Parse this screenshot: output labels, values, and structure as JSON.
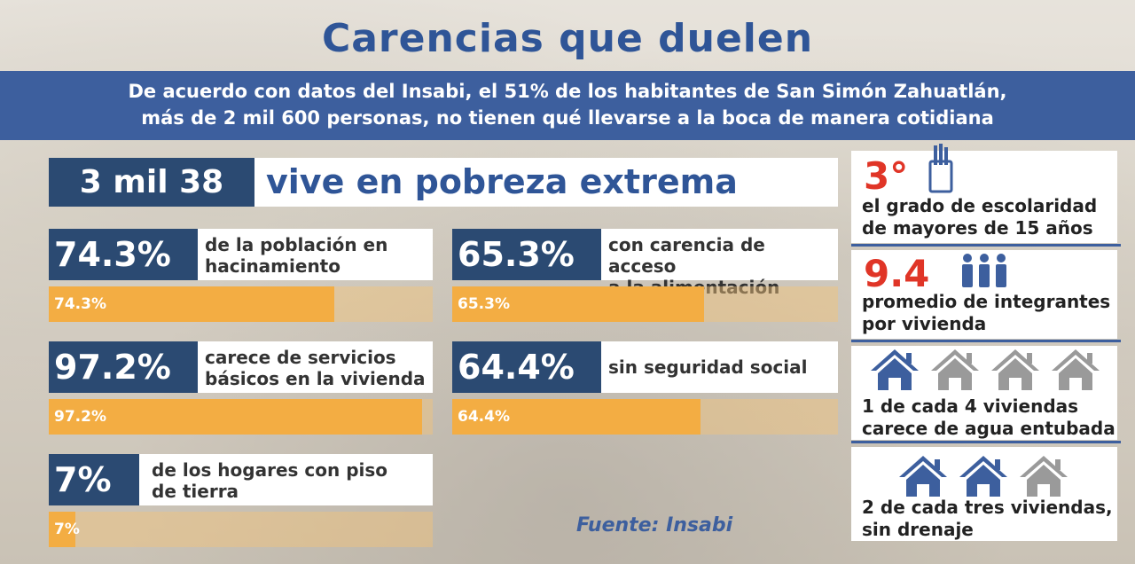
{
  "title": "Carencias que duelen",
  "subtitle_line1": "De acuerdo con datos del Insabi, el 51% de los habitantes de San Simón Zahuatlán,",
  "subtitle_line2": "más de 2 mil 600 personas, no tienen qué llevarse a la boca de manera cotidiana",
  "headline": {
    "number": "3 mil 38",
    "text": "vive en pobreza extrema"
  },
  "stats": [
    {
      "pct": "74.3%",
      "line1": "de la población en",
      "line2": "hacinamiento",
      "bar_label": "74.3%",
      "value": 74.3
    },
    {
      "pct": "65.3%",
      "line1": "con carencia de acceso",
      "line2": "a la alimentación",
      "bar_label": "65.3%",
      "value": 65.3
    },
    {
      "pct": "97.2%",
      "line1": "carece de servicios",
      "line2": "básicos en la vivienda",
      "bar_label": "97.2%",
      "value": 97.2
    },
    {
      "pct": "64.4%",
      "line1": "sin seguridad social",
      "line2": "",
      "bar_label": "64.4%",
      "value": 64.4
    },
    {
      "pct": "7%",
      "line1": "de los hogares con piso",
      "line2": "de tierra",
      "bar_label": "7%",
      "value": 7
    }
  ],
  "source": "Fuente: Insabi",
  "side": {
    "schooling": {
      "value": "3°",
      "line1": "el grado de escolaridad",
      "line2": "de mayores de 15 años",
      "icon": "pencil-cup-icon"
    },
    "household": {
      "value": "9.4",
      "line1": "promedio de integrantes",
      "line2": "por vivienda",
      "icon": "people-icon"
    },
    "water": {
      "line1": "1 de cada 4 viviendas",
      "line2": "carece de agua entubada",
      "filled": 1,
      "total": 4
    },
    "drainage": {
      "line1": "2 de cada tres viviendas,",
      "line2": "sin drenaje",
      "filled": 2,
      "total": 3
    }
  },
  "colors": {
    "navy": "#2b4a72",
    "blue": "#3d5f9e",
    "orange": "#f3ad43",
    "red": "#e03527",
    "gray": "#9a9a9a"
  }
}
